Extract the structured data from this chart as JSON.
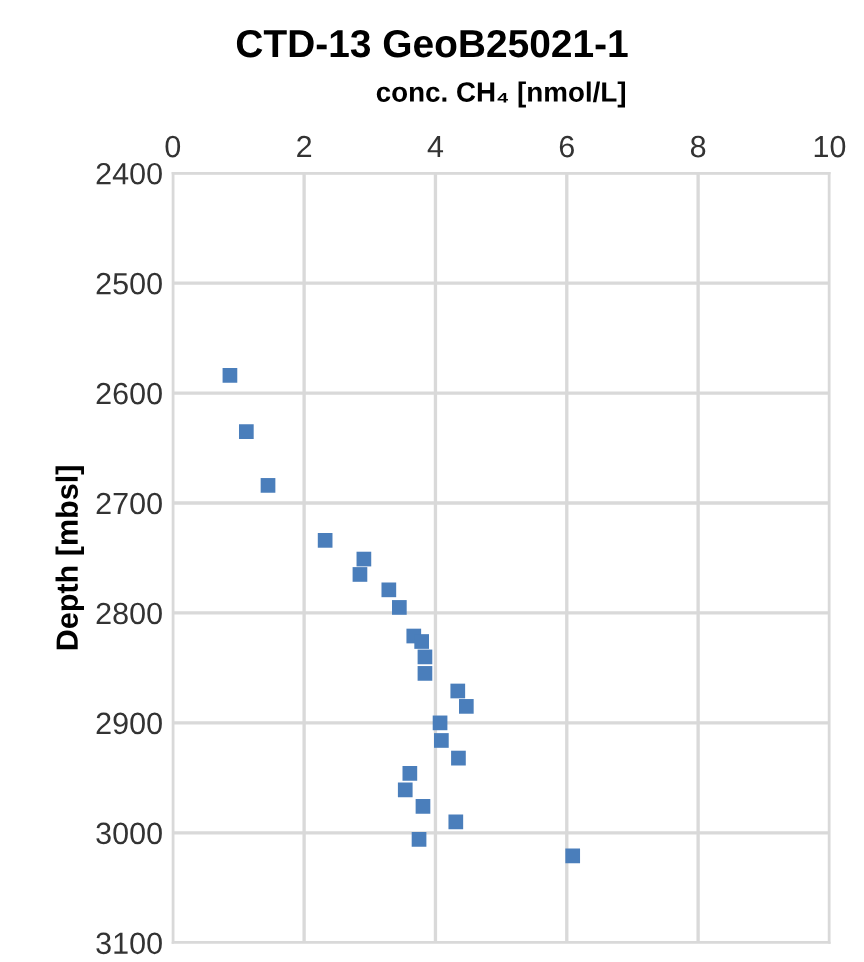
{
  "chart_data": {
    "type": "scatter",
    "title": "CTD-13 GeoB25021-1",
    "xlabel": "conc. CH₄ [nmol/L]",
    "ylabel": "Depth [mbsl]",
    "xlim": [
      0,
      10
    ],
    "xticks": [
      0,
      2,
      4,
      6,
      8,
      10
    ],
    "ylim": [
      3100,
      2400
    ],
    "yticks": [
      2400,
      2500,
      2600,
      2700,
      2800,
      2900,
      3000,
      3100
    ],
    "grid": true,
    "marker": "square",
    "series": [
      {
        "color": "#4a7ebb",
        "x": [
          0.87,
          1.12,
          1.45,
          2.32,
          2.91,
          2.85,
          3.29,
          3.45,
          3.67,
          3.79,
          3.84,
          3.84,
          4.34,
          4.47,
          4.07,
          4.09,
          4.35,
          3.61,
          3.54,
          3.81,
          4.31,
          3.75,
          6.09
        ],
        "values": [
          2584,
          2635,
          2684,
          2734,
          2751,
          2765,
          2779,
          2795,
          2821,
          2826,
          2840,
          2855,
          2871,
          2885,
          2900,
          2916,
          2932,
          2946,
          2961,
          2976,
          2990,
          3006,
          3021
        ]
      }
    ]
  }
}
